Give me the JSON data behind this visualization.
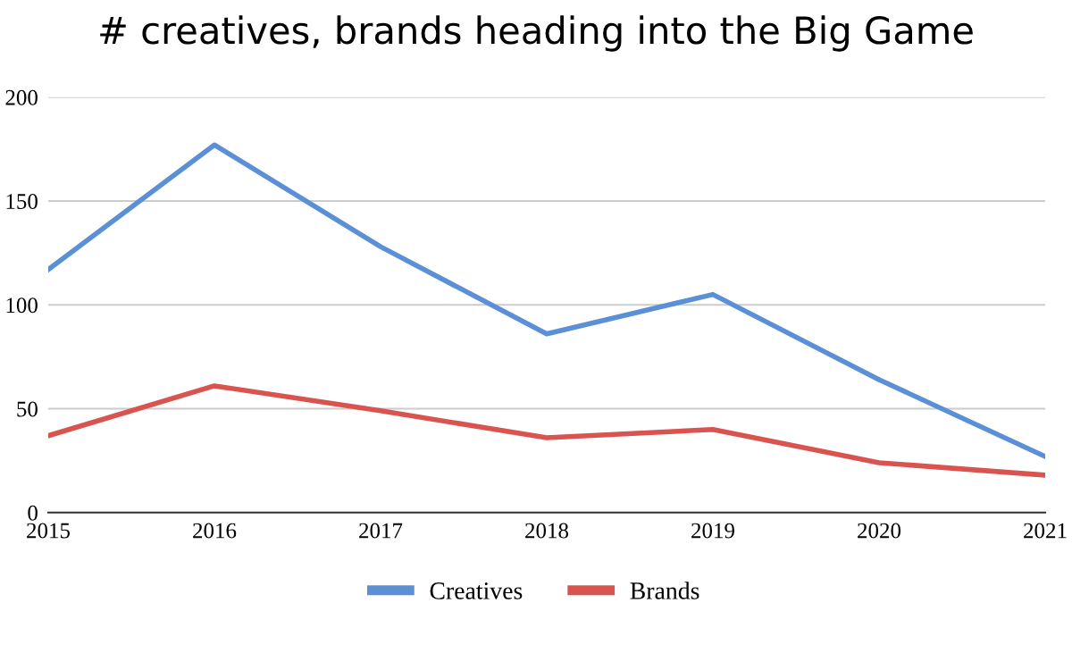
{
  "chart_data": {
    "type": "line",
    "title": "# creatives, brands heading into the Big Game",
    "x": [
      2015,
      2016,
      2017,
      2018,
      2019,
      2020,
      2021
    ],
    "series": [
      {
        "name": "Creatives",
        "color": "#5b8fd6",
        "values": [
          117,
          177,
          128,
          86,
          105,
          64,
          27
        ]
      },
      {
        "name": "Brands",
        "color": "#d9534f",
        "values": [
          37,
          61,
          49,
          36,
          40,
          24,
          18
        ]
      }
    ],
    "xlim": [
      2015,
      2021
    ],
    "xticks": [
      2015,
      2016,
      2017,
      2018,
      2019,
      2020,
      2021
    ],
    "ylim": [
      0,
      200
    ],
    "yticks": [
      0,
      50,
      100,
      150,
      200
    ],
    "grid": true,
    "legend": "bottom"
  }
}
